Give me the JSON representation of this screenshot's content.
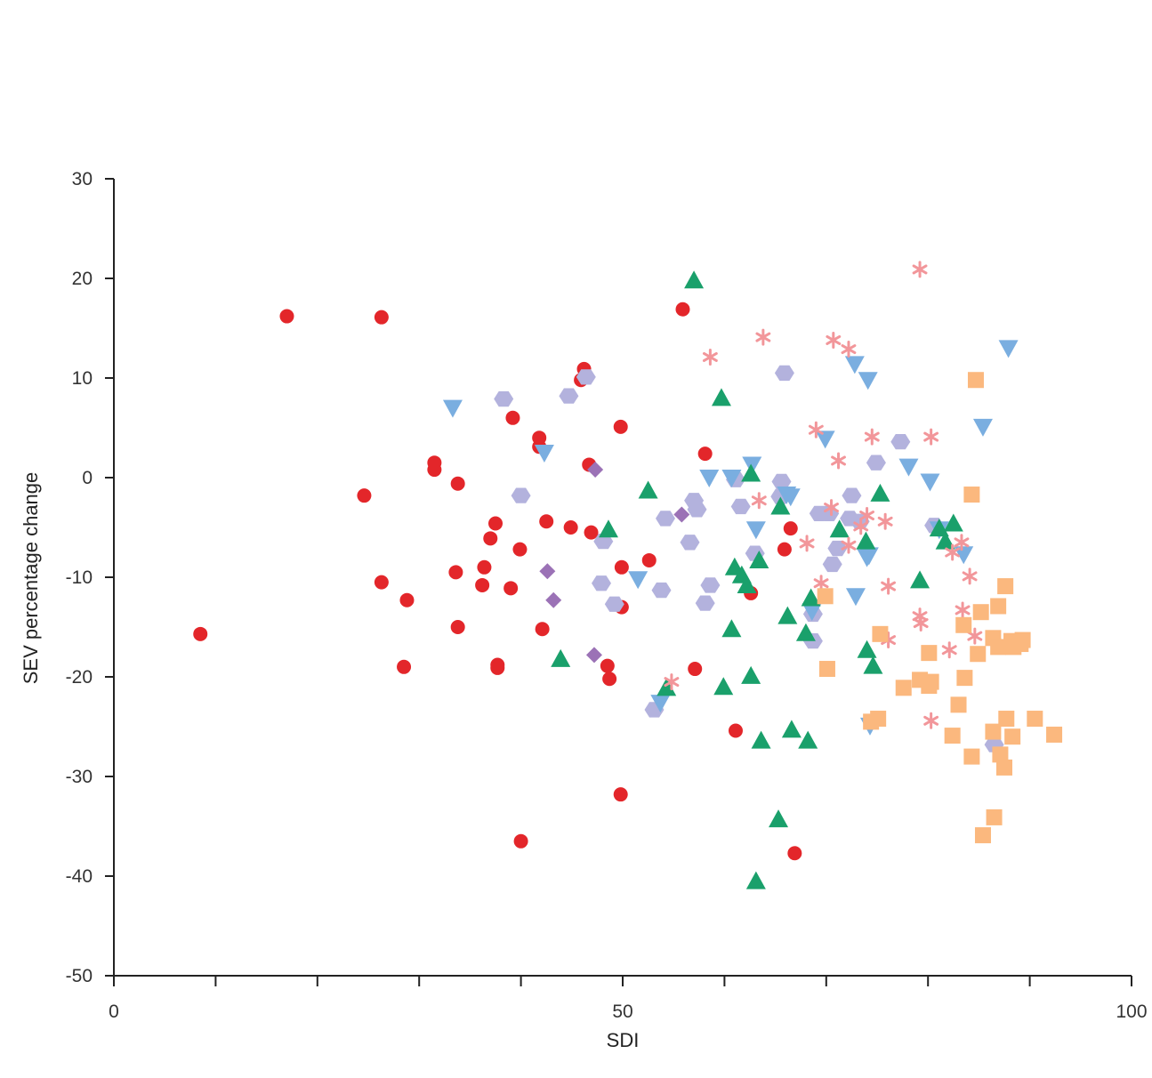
{
  "chart_data": {
    "type": "scatter",
    "title": "",
    "xlabel": "SDI",
    "ylabel": "SEV percentage change",
    "xlim": [
      0,
      100
    ],
    "ylim": [
      -50,
      30
    ],
    "x_ticks": [
      0,
      50,
      100
    ],
    "x_minor_ticks": [
      10,
      20,
      30,
      40,
      60,
      70,
      80,
      90
    ],
    "y_ticks": [
      30,
      20,
      10,
      0,
      -10,
      -20,
      -30,
      -40,
      -50
    ],
    "x_tick_labels": [
      "0",
      "50",
      "100"
    ],
    "y_tick_labels": [
      "30",
      "20",
      "10",
      "0",
      "-10",
      "-20",
      "-30",
      "-40",
      "-50"
    ],
    "grid": false,
    "legend": "none",
    "series": [
      {
        "marker": "circle",
        "color": "#e3262a",
        "points": [
          [
            8.5,
            -15.7
          ],
          [
            17,
            16.2
          ],
          [
            26.3,
            16.1
          ],
          [
            24.6,
            -1.8
          ],
          [
            26.3,
            -10.5
          ],
          [
            28.8,
            -12.3
          ],
          [
            28.5,
            -19
          ],
          [
            31.5,
            1.5
          ],
          [
            31.5,
            0.8
          ],
          [
            33.8,
            -0.6
          ],
          [
            33.6,
            -9.5
          ],
          [
            33.8,
            -15
          ],
          [
            36.4,
            -9
          ],
          [
            36.2,
            -10.8
          ],
          [
            37,
            -6.1
          ],
          [
            37.5,
            -4.6
          ],
          [
            37.7,
            -18.8
          ],
          [
            37.7,
            -19.1
          ],
          [
            39.2,
            6
          ],
          [
            39,
            -11.1
          ],
          [
            39.9,
            -7.2
          ],
          [
            40,
            -36.5
          ],
          [
            41.8,
            4
          ],
          [
            41.8,
            3.1
          ],
          [
            42.1,
            -15.2
          ],
          [
            42.5,
            -4.4
          ],
          [
            44.9,
            -5
          ],
          [
            45.9,
            9.8
          ],
          [
            46.2,
            10.9
          ],
          [
            46.7,
            1.3
          ],
          [
            46.9,
            -5.5
          ],
          [
            48.5,
            -18.9
          ],
          [
            48.7,
            -20.2
          ],
          [
            49.8,
            5.1
          ],
          [
            49.9,
            -9
          ],
          [
            49.9,
            -13
          ],
          [
            49.8,
            -31.8
          ],
          [
            52.6,
            -8.3
          ],
          [
            55.9,
            16.9
          ],
          [
            57.1,
            -19.2
          ],
          [
            58.1,
            2.4
          ],
          [
            61.1,
            -25.4
          ],
          [
            62.6,
            -11.6
          ],
          [
            65.9,
            -7.2
          ],
          [
            66.5,
            -5.1
          ],
          [
            66.9,
            -37.7
          ]
        ]
      },
      {
        "marker": "diamond",
        "color": "#9b72b6",
        "points": [
          [
            47.3,
            0.8
          ],
          [
            42.6,
            -9.4
          ],
          [
            43.2,
            -12.3
          ],
          [
            47.2,
            -17.8
          ],
          [
            55.8,
            -3.7
          ]
        ]
      },
      {
        "marker": "hexagon",
        "color": "#b3b2dd",
        "points": [
          [
            38.3,
            7.9
          ],
          [
            40,
            -1.8
          ],
          [
            44.7,
            8.2
          ],
          [
            46.4,
            10.1
          ],
          [
            48.1,
            -6.4
          ],
          [
            47.9,
            -10.6
          ],
          [
            49.2,
            -12.7
          ],
          [
            53.8,
            -11.3
          ],
          [
            53.1,
            -23.3
          ],
          [
            54.2,
            -4.1
          ],
          [
            56.6,
            -6.5
          ],
          [
            57,
            -2.3
          ],
          [
            57.3,
            -3.2
          ],
          [
            58.6,
            -10.8
          ],
          [
            58.1,
            -12.6
          ],
          [
            61.1,
            -0.2
          ],
          [
            61.6,
            -2.9
          ],
          [
            63,
            -7.6
          ],
          [
            65.5,
            -1.9
          ],
          [
            65.6,
            -0.4
          ],
          [
            65.9,
            10.5
          ],
          [
            68.7,
            -13.7
          ],
          [
            68.7,
            -16.4
          ],
          [
            69.3,
            -3.6
          ],
          [
            70.3,
            -3.6
          ],
          [
            70.6,
            -8.7
          ],
          [
            71.1,
            -7.1
          ],
          [
            72.3,
            -4.1
          ],
          [
            72.5,
            -1.8
          ],
          [
            73.3,
            -4.4
          ],
          [
            74.9,
            1.5
          ],
          [
            77.3,
            3.6
          ],
          [
            80.6,
            -4.8
          ],
          [
            86.5,
            -26.8
          ]
        ]
      },
      {
        "marker": "triangle-down",
        "color": "#7aaee0",
        "points": [
          [
            33.3,
            7
          ],
          [
            42.3,
            2.5
          ],
          [
            51.5,
            -10.2
          ],
          [
            53.7,
            -22.6
          ],
          [
            58.5,
            0
          ],
          [
            60.7,
            0
          ],
          [
            62.7,
            1.3
          ],
          [
            63.1,
            -5.2
          ],
          [
            66.1,
            -1.7
          ],
          [
            66.5,
            -1.9
          ],
          [
            68.6,
            -13.4
          ],
          [
            69.9,
            3.9
          ],
          [
            72.8,
            11.4
          ],
          [
            72.9,
            -11.9
          ],
          [
            74.1,
            9.8
          ],
          [
            74,
            -8
          ],
          [
            74.2,
            -7.8
          ],
          [
            74.3,
            -24.9
          ],
          [
            78.1,
            1.1
          ],
          [
            80.2,
            -0.4
          ],
          [
            81.1,
            -5.2
          ],
          [
            83.5,
            -7.7
          ],
          [
            85.4,
            5.1
          ],
          [
            87.9,
            13
          ]
        ]
      },
      {
        "marker": "triangle-up",
        "color": "#1aa06b",
        "points": [
          [
            43.9,
            -18.2
          ],
          [
            48.6,
            -5.2
          ],
          [
            52.5,
            -1.3
          ],
          [
            54.3,
            -21.1
          ],
          [
            57,
            19.8
          ],
          [
            59.9,
            -21
          ],
          [
            59.7,
            8
          ],
          [
            60.7,
            -15.2
          ],
          [
            61,
            -9
          ],
          [
            61.7,
            -9.8
          ],
          [
            62.2,
            -10.8
          ],
          [
            62.6,
            -19.9
          ],
          [
            62.6,
            0.4
          ],
          [
            63.4,
            -8.3
          ],
          [
            63.1,
            -40.5
          ],
          [
            63.6,
            -26.4
          ],
          [
            65.3,
            -34.3
          ],
          [
            65.5,
            -2.9
          ],
          [
            66.2,
            -13.9
          ],
          [
            66.6,
            -25.3
          ],
          [
            68,
            -15.6
          ],
          [
            68.5,
            -12.1
          ],
          [
            68.2,
            -26.4
          ],
          [
            71.3,
            -5.2
          ],
          [
            73.9,
            -6.4
          ],
          [
            74,
            -17.3
          ],
          [
            74.6,
            -18.9
          ],
          [
            75.3,
            -1.6
          ],
          [
            79.2,
            -10.3
          ],
          [
            81.1,
            -5.1
          ],
          [
            81.7,
            -6.4
          ],
          [
            82.5,
            -4.6
          ]
        ]
      },
      {
        "marker": "asterisk",
        "color": "#f2969a",
        "points": [
          [
            54.8,
            -20.5
          ],
          [
            58.6,
            12.1
          ],
          [
            63.4,
            -2.3
          ],
          [
            63.8,
            14.1
          ],
          [
            68.1,
            -6.6
          ],
          [
            69,
            4.8
          ],
          [
            69.5,
            -10.6
          ],
          [
            70.5,
            -3
          ],
          [
            70.7,
            13.8
          ],
          [
            71.2,
            1.7
          ],
          [
            72.2,
            12.9
          ],
          [
            72.2,
            -6.8
          ],
          [
            73.4,
            -4.9
          ],
          [
            74,
            -3.8
          ],
          [
            74.5,
            4.1
          ],
          [
            75.8,
            -4.4
          ],
          [
            76.1,
            -10.9
          ],
          [
            76.1,
            -16.3
          ],
          [
            79.2,
            20.9
          ],
          [
            79.2,
            -13.9
          ],
          [
            79.3,
            -14.6
          ],
          [
            80.3,
            4.1
          ],
          [
            80.3,
            -24.4
          ],
          [
            82.1,
            -17.3
          ],
          [
            82.4,
            -7.5
          ],
          [
            83.3,
            -6.5
          ],
          [
            83.4,
            -13.3
          ],
          [
            84.1,
            -9.9
          ],
          [
            84.6,
            -15.9
          ]
        ]
      },
      {
        "marker": "square",
        "color": "#fbb87e",
        "points": [
          [
            69.9,
            -11.9
          ],
          [
            70.1,
            -19.2
          ],
          [
            74.4,
            -24.5
          ],
          [
            75.3,
            -15.7
          ],
          [
            75.1,
            -24.2
          ],
          [
            77.6,
            -21.1
          ],
          [
            79.2,
            -20.3
          ],
          [
            80.3,
            -20.5
          ],
          [
            80.1,
            -20.9
          ],
          [
            80.1,
            -17.6
          ],
          [
            82.4,
            -25.9
          ],
          [
            83,
            -22.8
          ],
          [
            83.5,
            -14.8
          ],
          [
            83.6,
            -20.1
          ],
          [
            84.3,
            -28
          ],
          [
            84.3,
            -1.7
          ],
          [
            84.9,
            -17.7
          ],
          [
            84.7,
            9.8
          ],
          [
            85.2,
            -13.5
          ],
          [
            85.4,
            -35.9
          ],
          [
            86.5,
            -34.1
          ],
          [
            86.4,
            -16.1
          ],
          [
            86.4,
            -25.5
          ],
          [
            86.9,
            -17
          ],
          [
            86.9,
            -12.9
          ],
          [
            87.1,
            -27.8
          ],
          [
            87.5,
            -29.1
          ],
          [
            87.6,
            -10.9
          ],
          [
            87.7,
            -24.2
          ],
          [
            88.2,
            -16.4
          ],
          [
            88.3,
            -26
          ],
          [
            88.4,
            -17
          ],
          [
            89.1,
            -16.7
          ],
          [
            89.3,
            -16.3
          ],
          [
            90.5,
            -24.2
          ],
          [
            92.4,
            -25.8
          ]
        ]
      }
    ]
  }
}
